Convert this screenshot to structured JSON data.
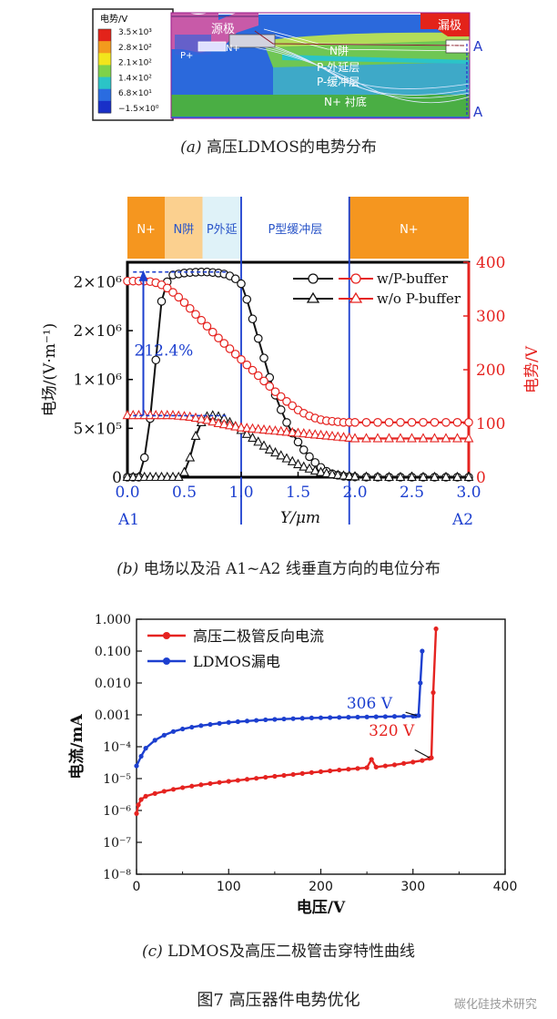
{
  "figure": {
    "title": "图7 高压器件电势优化",
    "watermark": "碳化硅技术研究"
  },
  "panel_a": {
    "caption_label": "(a)",
    "caption_text": "高压LDMOS的电势分布",
    "legend_title": "电势/V",
    "legend_ticks": [
      "3.5×10³",
      "2.8×10²",
      "2.1×10²",
      "1.4×10²",
      "6.8×10¹",
      "−1.5×10⁰"
    ],
    "legend_colors": [
      "#e3231a",
      "#f39a1d",
      "#f2e51c",
      "#7ed24a",
      "#2bc4c7",
      "#2a6ce0",
      "#1930c8"
    ],
    "labels": {
      "source": "源极",
      "drain": "漏极",
      "pplus": "P+",
      "nplus_left": "N+",
      "nplus_right": "N+",
      "nwell": "N阱",
      "p_epi": "P-外延层",
      "p_buffer": "P-缓冲层",
      "substrate": "N+ 衬底",
      "a1": "A1",
      "a2": "A2"
    }
  },
  "panel_b": {
    "caption_label": "(b)",
    "caption_text": "电场以及沿 A1~A2 线垂直方向的电位分布",
    "regions": [
      {
        "label": "N+",
        "from": 0.0,
        "to": 0.33,
        "color": "#f5961f",
        "text_color": "#ffffff"
      },
      {
        "label": "N阱",
        "from": 0.33,
        "to": 0.66,
        "color": "#fbd08f",
        "text_color": "#2a55c8"
      },
      {
        "label": "P外延",
        "from": 0.66,
        "to": 1.0,
        "color": "#dff2f8",
        "text_color": "#2a55c8"
      },
      {
        "label": "P型缓冲层",
        "from": 1.0,
        "to": 1.95,
        "color": "#ffffff",
        "text_color": "#2a55c8"
      },
      {
        "label": "N+",
        "from": 1.95,
        "to": 3.0,
        "color": "#f5961f",
        "text_color": "#ffffff"
      }
    ],
    "annotation_pct": "212.4%",
    "a1": "A1",
    "a2": "A2"
  },
  "panel_c": {
    "caption_label": "(c)",
    "caption_text": "LDMOS及高压二极管击穿特性曲线",
    "annot_306": "306 V",
    "annot_320": "320 V"
  },
  "chart_data": [
    {
      "type": "line",
      "xlabel": "Y/μm",
      "ylabel": "电场/(V·m⁻¹)",
      "y2label": "电势/V",
      "xlim": [
        0.0,
        3.0
      ],
      "ylim": [
        0,
        2200000
      ],
      "y2lim": [
        0,
        400
      ],
      "xticks": [
        "0.0",
        "0.5",
        "1.0",
        "1.5",
        "2.0",
        "2.5",
        "3.0"
      ],
      "yticks": [
        "0",
        "5×10⁵",
        "1×10⁶",
        "2×10⁶",
        "2×10⁶"
      ],
      "y2ticks": [
        "0",
        "100",
        "200",
        "300",
        "400"
      ],
      "legend_position": "top-right",
      "series": [
        {
          "name": "w/P-buffer",
          "axis": "left",
          "color": "#111111",
          "marker": "circle",
          "x": [
            0.0,
            0.05,
            0.1,
            0.15,
            0.2,
            0.25,
            0.3,
            0.35,
            0.4,
            0.45,
            0.5,
            0.55,
            0.6,
            0.65,
            0.7,
            0.75,
            0.8,
            0.85,
            0.9,
            0.95,
            1.0,
            1.05,
            1.1,
            1.15,
            1.2,
            1.25,
            1.3,
            1.35,
            1.4,
            1.45,
            1.5,
            1.55,
            1.6,
            1.65,
            1.7,
            1.75,
            1.8,
            1.85,
            1.9,
            1.95,
            2.0,
            2.1,
            2.2,
            2.3,
            2.4,
            2.5,
            2.6,
            2.7,
            2.8,
            2.9,
            3.0
          ],
          "values": [
            0,
            0,
            0,
            200000,
            600000,
            1200000,
            1800000,
            2000000,
            2070000,
            2080000,
            2090000,
            2095000,
            2098000,
            2100000,
            2100000,
            2095000,
            2090000,
            2080000,
            2060000,
            2030000,
            1980000,
            1820000,
            1620000,
            1420000,
            1220000,
            1020000,
            840000,
            690000,
            560000,
            450000,
            360000,
            280000,
            210000,
            150000,
            100000,
            60000,
            35000,
            20000,
            10000,
            5000,
            2000,
            1000,
            0,
            0,
            0,
            0,
            0,
            0,
            0,
            0,
            0
          ]
        },
        {
          "name": "w/o P-buffer",
          "axis": "left",
          "color": "#111111",
          "marker": "triangle",
          "x": [
            0.0,
            0.05,
            0.1,
            0.15,
            0.2,
            0.25,
            0.3,
            0.35,
            0.4,
            0.45,
            0.5,
            0.55,
            0.6,
            0.65,
            0.7,
            0.75,
            0.8,
            0.85,
            0.9,
            0.95,
            1.0,
            1.05,
            1.1,
            1.15,
            1.2,
            1.25,
            1.3,
            1.35,
            1.4,
            1.45,
            1.5,
            1.55,
            1.6,
            1.65,
            1.7,
            1.75,
            1.8,
            1.85,
            1.9,
            1.95,
            2.0,
            2.1,
            2.2,
            2.3,
            2.4,
            2.5,
            2.6,
            2.7,
            2.8,
            2.9,
            3.0
          ],
          "values": [
            0,
            0,
            0,
            0,
            0,
            0,
            0,
            0,
            0,
            0,
            50000,
            200000,
            420000,
            560000,
            620000,
            630000,
            620000,
            600000,
            560000,
            520000,
            480000,
            440000,
            400000,
            360000,
            320000,
            280000,
            250000,
            220000,
            190000,
            160000,
            130000,
            105000,
            85000,
            65000,
            50000,
            38000,
            28000,
            20000,
            14000,
            9000,
            5000,
            2000,
            1000,
            0,
            0,
            0,
            0,
            0,
            0,
            0,
            0
          ]
        },
        {
          "name": "w/P-buffer 电势",
          "axis": "right",
          "color": "#e52320",
          "marker": "circle",
          "x": [
            0.0,
            0.05,
            0.1,
            0.15,
            0.2,
            0.25,
            0.3,
            0.35,
            0.4,
            0.45,
            0.5,
            0.55,
            0.6,
            0.65,
            0.7,
            0.75,
            0.8,
            0.85,
            0.9,
            0.95,
            1.0,
            1.05,
            1.1,
            1.15,
            1.2,
            1.25,
            1.3,
            1.35,
            1.4,
            1.45,
            1.5,
            1.55,
            1.6,
            1.65,
            1.7,
            1.75,
            1.8,
            1.85,
            1.9,
            1.95,
            2.0,
            2.1,
            2.2,
            2.3,
            2.4,
            2.5,
            2.6,
            2.7,
            2.8,
            2.9,
            3.0
          ],
          "values": [
            365,
            365,
            365,
            365,
            364,
            362,
            358,
            352,
            344,
            335,
            325,
            314,
            303,
            292,
            281,
            270,
            259,
            249,
            239,
            229,
            219,
            209,
            199,
            189,
            179,
            169,
            159,
            150,
            141,
            133,
            125,
            119,
            114,
            110,
            107,
            105,
            104,
            103,
            102,
            102,
            102,
            102,
            102,
            102,
            102,
            102,
            102,
            102,
            102,
            102,
            102
          ]
        },
        {
          "name": "w/o P-buffer 电势",
          "axis": "right",
          "color": "#e52320",
          "marker": "triangle",
          "x": [
            0.0,
            0.05,
            0.1,
            0.15,
            0.2,
            0.25,
            0.3,
            0.35,
            0.4,
            0.45,
            0.5,
            0.55,
            0.6,
            0.65,
            0.7,
            0.75,
            0.8,
            0.85,
            0.9,
            0.95,
            1.0,
            1.05,
            1.1,
            1.15,
            1.2,
            1.25,
            1.3,
            1.35,
            1.4,
            1.45,
            1.5,
            1.55,
            1.6,
            1.65,
            1.7,
            1.75,
            1.8,
            1.85,
            1.9,
            1.95,
            2.0,
            2.1,
            2.2,
            2.3,
            2.4,
            2.5,
            2.6,
            2.7,
            2.8,
            2.9,
            3.0
          ],
          "values": [
            115,
            115,
            115,
            115,
            115,
            115,
            115,
            115,
            115,
            114,
            113,
            112,
            110,
            108,
            106,
            103,
            100,
            98,
            96,
            94,
            92,
            91,
            90,
            89,
            88,
            87,
            86,
            85,
            84,
            83,
            82,
            81,
            80,
            79,
            78,
            77,
            76,
            75,
            74,
            73,
            72,
            72,
            72,
            72,
            72,
            72,
            72,
            72,
            72,
            72,
            72
          ]
        }
      ]
    },
    {
      "type": "line",
      "xlabel": "电压/V",
      "ylabel": "电流/mA",
      "xlim": [
        0,
        400
      ],
      "ylim": [
        1e-08,
        1
      ],
      "y_scale": "log",
      "xticks": [
        "0",
        "100",
        "200",
        "300",
        "400"
      ],
      "yticks": [
        "1.000",
        "0.100",
        "0.010",
        "0.001",
        "10⁻⁴",
        "10⁻⁵",
        "10⁻⁶",
        "10⁻⁷",
        "10⁻⁸"
      ],
      "legend_position": "top-left",
      "series": [
        {
          "name": "高压二极管反向电流",
          "color": "#e52320",
          "marker": "circle",
          "x": [
            0,
            2,
            5,
            10,
            20,
            30,
            40,
            50,
            60,
            70,
            80,
            90,
            100,
            110,
            120,
            130,
            140,
            150,
            160,
            170,
            180,
            190,
            200,
            210,
            220,
            230,
            240,
            250,
            255,
            260,
            270,
            280,
            290,
            300,
            310,
            318,
            320,
            322,
            325
          ],
          "values": [
            8e-07,
            1.5e-06,
            2.2e-06,
            2.8e-06,
            3.4e-06,
            4e-06,
            4.6e-06,
            5.2e-06,
            5.8e-06,
            6.4e-06,
            7e-06,
            7.6e-06,
            8.2e-06,
            8.8e-06,
            9.5e-06,
            1.02e-05,
            1.1e-05,
            1.18e-05,
            1.26e-05,
            1.35e-05,
            1.45e-05,
            1.55e-05,
            1.65e-05,
            1.75e-05,
            1.86e-05,
            1.97e-05,
            2.08e-05,
            2.2e-05,
            4e-05,
            2.3e-05,
            2.5e-05,
            2.7e-05,
            3e-05,
            3.3e-05,
            3.7e-05,
            4.3e-05,
            4.5e-05,
            0.005,
            0.5
          ]
        },
        {
          "name": "LDMOS漏电",
          "color": "#1c3fcf",
          "marker": "circle",
          "x": [
            0,
            5,
            10,
            20,
            30,
            40,
            50,
            60,
            70,
            80,
            90,
            100,
            110,
            120,
            130,
            140,
            150,
            160,
            170,
            180,
            190,
            200,
            210,
            220,
            230,
            240,
            250,
            260,
            270,
            280,
            290,
            300,
            303,
            306,
            308,
            310
          ],
          "values": [
            2.5e-05,
            5e-05,
            9e-05,
            0.00016,
            0.00023,
            0.0003,
            0.00036,
            0.00041,
            0.00046,
            0.0005,
            0.00054,
            0.00058,
            0.00061,
            0.00064,
            0.00067,
            0.0007,
            0.00072,
            0.00074,
            0.00076,
            0.00078,
            0.0008,
            0.00081,
            0.00082,
            0.00083,
            0.00084,
            0.00085,
            0.00086,
            0.00087,
            0.00088,
            0.00089,
            0.0009,
            0.00091,
            0.00092,
            0.00095,
            0.01,
            0.1
          ]
        }
      ]
    }
  ]
}
